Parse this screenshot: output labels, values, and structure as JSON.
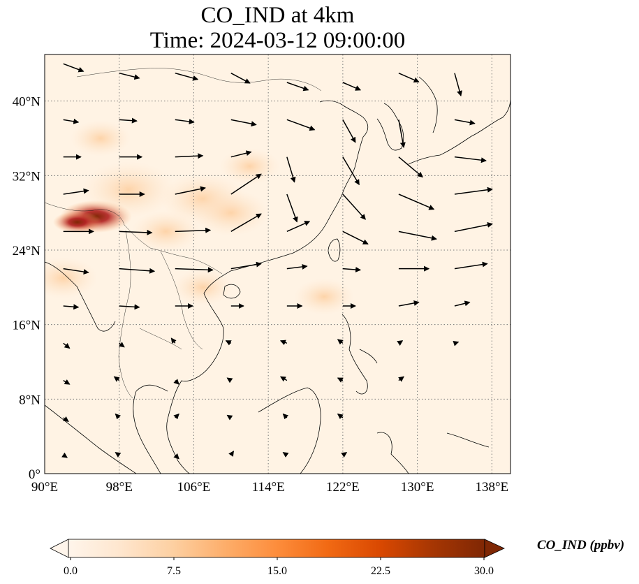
{
  "title_line1": "CO_IND at 4km",
  "title_line2": "Time: 2024-03-12 09:00:00",
  "map": {
    "extent": {
      "lon_min": 90,
      "lon_max": 140,
      "lat_min": 0,
      "lat_max": 45
    },
    "x_ticks": [
      {
        "value": 90,
        "label": "90°E"
      },
      {
        "value": 98,
        "label": "98°E"
      },
      {
        "value": 106,
        "label": "106°E"
      },
      {
        "value": 114,
        "label": "114°E"
      },
      {
        "value": 122,
        "label": "122°E"
      },
      {
        "value": 130,
        "label": "130°E"
      },
      {
        "value": 138,
        "label": "138°E"
      }
    ],
    "y_ticks": [
      {
        "value": 0,
        "label": "0°"
      },
      {
        "value": 8,
        "label": "8°N"
      },
      {
        "value": 16,
        "label": "16°N"
      },
      {
        "value": 24,
        "label": "24°N"
      },
      {
        "value": 32,
        "label": "32°N"
      },
      {
        "value": 40,
        "label": "40°N"
      }
    ],
    "gridlines": "dotted",
    "field_color_hotspot": "#b01e1e",
    "hotspots": [
      {
        "lon": 95.5,
        "lat": 27.6,
        "value": 28
      },
      {
        "lon": 93.5,
        "lat": 27.0,
        "value": 14
      },
      {
        "lon": 99.0,
        "lat": 30.5,
        "value": 7
      },
      {
        "lon": 107,
        "lat": 29.5,
        "value": 6
      },
      {
        "lon": 110,
        "lat": 28,
        "value": 5
      },
      {
        "lon": 103,
        "lat": 26,
        "value": 4
      },
      {
        "lon": 96,
        "lat": 36,
        "value": 3
      },
      {
        "lon": 112,
        "lat": 33,
        "value": 3
      },
      {
        "lon": 107,
        "lat": 20,
        "value": 3
      },
      {
        "lon": 92,
        "lat": 21,
        "value": 4
      },
      {
        "lon": 120,
        "lat": 19,
        "value": 3
      }
    ],
    "wind": [
      {
        "lon": 92,
        "lat": 44,
        "u": 1.6,
        "v": -0.6
      },
      {
        "lon": 98,
        "lat": 43,
        "u": 1.6,
        "v": -0.4
      },
      {
        "lon": 104,
        "lat": 43,
        "u": 1.8,
        "v": -0.5
      },
      {
        "lon": 110,
        "lat": 43,
        "u": 1.5,
        "v": -0.8
      },
      {
        "lon": 116,
        "lat": 42,
        "u": 1.7,
        "v": -0.6
      },
      {
        "lon": 122,
        "lat": 42,
        "u": 1.4,
        "v": -0.6
      },
      {
        "lon": 128,
        "lat": 43,
        "u": 1.6,
        "v": -0.7
      },
      {
        "lon": 134,
        "lat": 43,
        "u": 0.5,
        "v": -1.8
      },
      {
        "lon": 92,
        "lat": 38,
        "u": 1.2,
        "v": -0.2
      },
      {
        "lon": 98,
        "lat": 38,
        "u": 1.4,
        "v": -0.1
      },
      {
        "lon": 104,
        "lat": 38,
        "u": 1.5,
        "v": -0.2
      },
      {
        "lon": 110,
        "lat": 38,
        "u": 2.0,
        "v": -0.4
      },
      {
        "lon": 116,
        "lat": 38,
        "u": 2.2,
        "v": -0.8
      },
      {
        "lon": 122,
        "lat": 38,
        "u": 1.0,
        "v": -1.8
      },
      {
        "lon": 128,
        "lat": 38,
        "u": 0.4,
        "v": -2.2
      },
      {
        "lon": 134,
        "lat": 38,
        "u": 1.6,
        "v": -0.3
      },
      {
        "lon": 92,
        "lat": 34,
        "u": 1.4,
        "v": 0.0
      },
      {
        "lon": 98,
        "lat": 34,
        "u": 1.8,
        "v": 0.0
      },
      {
        "lon": 104,
        "lat": 34,
        "u": 2.2,
        "v": 0.1
      },
      {
        "lon": 110,
        "lat": 34,
        "u": 1.6,
        "v": 0.4
      },
      {
        "lon": 116,
        "lat": 34,
        "u": 0.6,
        "v": -2.0
      },
      {
        "lon": 122,
        "lat": 34,
        "u": 1.3,
        "v": -2.2
      },
      {
        "lon": 128,
        "lat": 34,
        "u": 1.9,
        "v": -1.6
      },
      {
        "lon": 134,
        "lat": 34,
        "u": 2.5,
        "v": -0.3
      },
      {
        "lon": 92,
        "lat": 30,
        "u": 2.0,
        "v": 0.3
      },
      {
        "lon": 98,
        "lat": 30,
        "u": 2.0,
        "v": 0.0
      },
      {
        "lon": 104,
        "lat": 30,
        "u": 2.4,
        "v": 0.5
      },
      {
        "lon": 110,
        "lat": 30,
        "u": 2.4,
        "v": 1.6
      },
      {
        "lon": 116,
        "lat": 30,
        "u": 0.8,
        "v": -2.2
      },
      {
        "lon": 122,
        "lat": 30,
        "u": 1.8,
        "v": -2.0
      },
      {
        "lon": 128,
        "lat": 30,
        "u": 2.8,
        "v": -1.2
      },
      {
        "lon": 134,
        "lat": 30,
        "u": 3.0,
        "v": 0.4
      },
      {
        "lon": 92,
        "lat": 26,
        "u": 2.4,
        "v": 0.0
      },
      {
        "lon": 98,
        "lat": 26,
        "u": 2.6,
        "v": -0.1
      },
      {
        "lon": 104,
        "lat": 26,
        "u": 2.8,
        "v": 0.1
      },
      {
        "lon": 110,
        "lat": 26,
        "u": 2.4,
        "v": 1.4
      },
      {
        "lon": 116,
        "lat": 26,
        "u": 1.8,
        "v": 0.8
      },
      {
        "lon": 122,
        "lat": 26,
        "u": 2.0,
        "v": -1.0
      },
      {
        "lon": 128,
        "lat": 26,
        "u": 3.0,
        "v": -0.6
      },
      {
        "lon": 134,
        "lat": 26,
        "u": 3.0,
        "v": 0.6
      },
      {
        "lon": 92,
        "lat": 22,
        "u": 2.0,
        "v": -0.3
      },
      {
        "lon": 98,
        "lat": 22,
        "u": 2.8,
        "v": -0.2
      },
      {
        "lon": 104,
        "lat": 22,
        "u": 3.0,
        "v": -0.1
      },
      {
        "lon": 110,
        "lat": 22,
        "u": 2.4,
        "v": 0.4
      },
      {
        "lon": 116,
        "lat": 22,
        "u": 1.6,
        "v": 0.2
      },
      {
        "lon": 122,
        "lat": 22,
        "u": 1.4,
        "v": -0.1
      },
      {
        "lon": 128,
        "lat": 22,
        "u": 2.4,
        "v": 0.0
      },
      {
        "lon": 134,
        "lat": 22,
        "u": 2.6,
        "v": 0.4
      },
      {
        "lon": 92,
        "lat": 18,
        "u": 1.2,
        "v": -0.1
      },
      {
        "lon": 98,
        "lat": 18,
        "u": 1.6,
        "v": -0.1
      },
      {
        "lon": 104,
        "lat": 18,
        "u": 1.4,
        "v": 0.0
      },
      {
        "lon": 110,
        "lat": 18,
        "u": 1.0,
        "v": 0.0
      },
      {
        "lon": 116,
        "lat": 18,
        "u": 1.2,
        "v": 0.0
      },
      {
        "lon": 122,
        "lat": 18,
        "u": 1.0,
        "v": 0.0
      },
      {
        "lon": 128,
        "lat": 18,
        "u": 1.6,
        "v": 0.3
      },
      {
        "lon": 134,
        "lat": 18,
        "u": 1.2,
        "v": 0.3
      },
      {
        "lon": 92,
        "lat": 14,
        "u": 0.5,
        "v": -0.4
      },
      {
        "lon": 98,
        "lat": 14,
        "u": 0.4,
        "v": -0.3
      },
      {
        "lon": 104,
        "lat": 14,
        "u": -0.3,
        "v": 0.4
      },
      {
        "lon": 110,
        "lat": 14,
        "u": -0.4,
        "v": 0.2
      },
      {
        "lon": 116,
        "lat": 14,
        "u": -0.5,
        "v": 0.2
      },
      {
        "lon": 122,
        "lat": 14,
        "u": -0.4,
        "v": 0.3
      },
      {
        "lon": 128,
        "lat": 14,
        "u": 0.3,
        "v": 0.2
      },
      {
        "lon": 134,
        "lat": 14,
        "u": 0.3,
        "v": 0.1
      },
      {
        "lon": 92,
        "lat": 10,
        "u": 0.5,
        "v": -0.3
      },
      {
        "lon": 98,
        "lat": 10,
        "u": -0.4,
        "v": 0.3
      },
      {
        "lon": 104,
        "lat": 10,
        "u": 0.3,
        "v": -0.3
      },
      {
        "lon": 110,
        "lat": 10,
        "u": -0.3,
        "v": 0.2
      },
      {
        "lon": 116,
        "lat": 10,
        "u": -0.5,
        "v": 0.3
      },
      {
        "lon": 122,
        "lat": 10,
        "u": -0.4,
        "v": 0.2
      },
      {
        "lon": 128,
        "lat": 10,
        "u": 0.4,
        "v": 0.3
      },
      {
        "lon": 92,
        "lat": 6,
        "u": 0.4,
        "v": -0.3
      },
      {
        "lon": 98,
        "lat": 6,
        "u": -0.3,
        "v": 0.3
      },
      {
        "lon": 104,
        "lat": 6,
        "u": 0.3,
        "v": 0.3
      },
      {
        "lon": 110,
        "lat": 6,
        "u": -0.3,
        "v": 0.2
      },
      {
        "lon": 116,
        "lat": 6,
        "u": -0.3,
        "v": 0.3
      },
      {
        "lon": 122,
        "lat": 6,
        "u": -0.4,
        "v": 0.3
      },
      {
        "lon": 92,
        "lat": 2,
        "u": 0.3,
        "v": -0.2
      },
      {
        "lon": 98,
        "lat": 2,
        "u": -0.3,
        "v": 0.2
      },
      {
        "lon": 104,
        "lat": 2,
        "u": 0.3,
        "v": -0.3
      },
      {
        "lon": 110,
        "lat": 2,
        "u": 0.2,
        "v": 0.3
      },
      {
        "lon": 116,
        "lat": 2,
        "u": -0.3,
        "v": 0.2
      },
      {
        "lon": 122,
        "lat": 2,
        "u": 0.3,
        "v": 0.2
      }
    ]
  },
  "colorbar": {
    "title": "CO_IND (ppbv)",
    "min": 0.0,
    "max": 30.0,
    "ticks": [
      "0.0",
      "7.5",
      "15.0",
      "22.5",
      "30.0"
    ],
    "colors": [
      "#fff5eb",
      "#fee6ce",
      "#fdd0a2",
      "#fdae6b",
      "#fd8d3c",
      "#f16913",
      "#d94801",
      "#a63603",
      "#7f2704"
    ],
    "extend": "both"
  }
}
